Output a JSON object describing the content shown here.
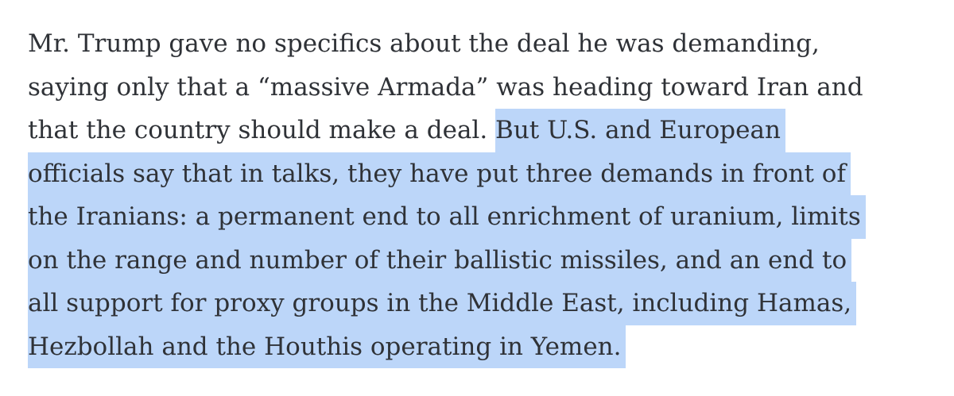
{
  "article": {
    "lines": [
      {
        "plain": "Mr. Trump gave no specifics about the deal he was demanding,",
        "highlighted": ""
      },
      {
        "plain": "saying only that a “massive Armada” was heading toward Iran and",
        "highlighted": ""
      },
      {
        "plain": "that the country should make a deal. ",
        "highlighted": "But U.S. and European"
      },
      {
        "plain": "",
        "highlighted": "officials say that in talks, they have put three demands in front of"
      },
      {
        "plain": "",
        "highlighted": "the Iranians: a permanent end to all enrichment of uranium, limits"
      },
      {
        "plain": "",
        "highlighted": "on the range and number of their ballistic missiles, and an end to"
      },
      {
        "plain": "",
        "highlighted": "all support for proxy groups in the Middle East, including Hamas,"
      },
      {
        "plain": "",
        "highlighted": "Hezbollah and the Houthis operating in Yemen."
      }
    ]
  },
  "colors": {
    "selection_highlight": "#bcd6f9",
    "text": "#2f3237"
  }
}
